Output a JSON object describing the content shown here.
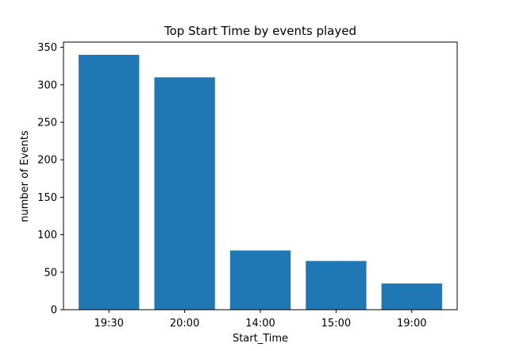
{
  "chart_data": {
    "type": "bar",
    "title": "Top Start Time by events played",
    "xlabel": "Start_Time",
    "ylabel": "number of Events",
    "categories": [
      "19:30",
      "20:00",
      "14:00",
      "15:00",
      "19:00"
    ],
    "values": [
      340,
      310,
      79,
      65,
      35
    ],
    "ylim": [
      0,
      357
    ],
    "yticks": [
      0,
      50,
      100,
      150,
      200,
      250,
      300,
      350
    ],
    "grid": false,
    "legend": "none",
    "bar_color": "#1f77b4"
  }
}
